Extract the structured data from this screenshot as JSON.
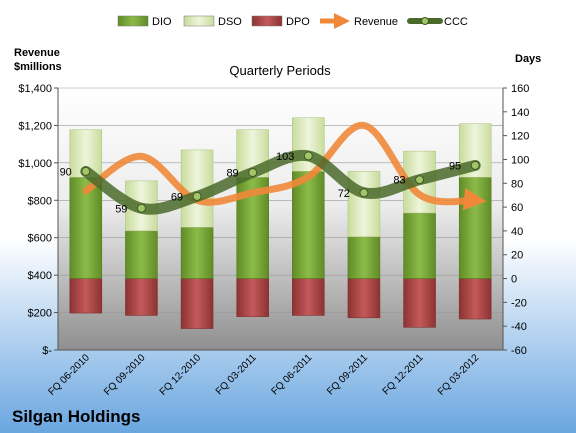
{
  "chart_data": {
    "type": "bar",
    "title": "Quarterly Periods",
    "company": "Silgan Holdings",
    "left_axis_label_line1": "Revenue",
    "left_axis_label_line2": "$millions",
    "right_axis_label": "Days",
    "categories": [
      "FQ 06-2010",
      "FQ 09-2010",
      "FQ 12-2010",
      "FQ 03-2011",
      "FQ 06-2011",
      "FQ 09-2011",
      "FQ 12-2011",
      "FQ 03-2012"
    ],
    "left_ticks": [
      "$-",
      "$200",
      "$400",
      "$600",
      "$800",
      "$1,000",
      "$1,200",
      "$1,400"
    ],
    "right_ticks": [
      "-60",
      "-40",
      "-20",
      "0",
      "20",
      "40",
      "60",
      "80",
      "100",
      "120",
      "140",
      "160"
    ],
    "ylim_left": [
      0,
      1400
    ],
    "ylim_right": [
      -60,
      160
    ],
    "legend_position": "top",
    "legend": [
      "DIO",
      "DSO",
      "DPO",
      "Revenue",
      "CCC"
    ],
    "series": [
      {
        "name": "DIO",
        "axis": "right",
        "values": [
          85,
          40,
          43,
          85,
          90,
          35,
          55,
          85
        ],
        "color": "#7aa83a"
      },
      {
        "name": "DSO",
        "axis": "right",
        "values": [
          40,
          42,
          65,
          40,
          45,
          55,
          52,
          45
        ],
        "color": "#dbe9b8"
      },
      {
        "name": "DPO",
        "axis": "right",
        "values": [
          -29,
          -31,
          -42,
          -32,
          -31,
          -33,
          -41,
          -34
        ],
        "color": "#b04848"
      },
      {
        "name": "Revenue",
        "axis": "left",
        "values": [
          850,
          1035,
          800,
          840,
          925,
          1200,
          830,
          800
        ],
        "color": "#f0883a"
      },
      {
        "name": "CCC",
        "axis": "right",
        "values": [
          90,
          59,
          69,
          89,
          103,
          72,
          83,
          95
        ],
        "color": "#5a7a32"
      }
    ],
    "ccc_labels": [
      "90",
      "59",
      "69",
      "89",
      "103",
      "72",
      "83",
      "95"
    ]
  }
}
